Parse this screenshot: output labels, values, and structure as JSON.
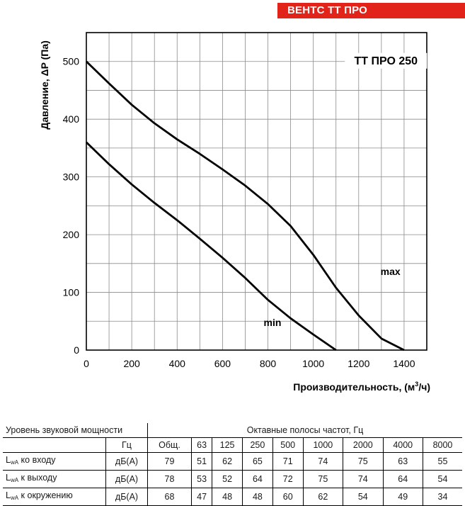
{
  "brand_title": "ВЕНТС ТТ ПРО",
  "chart_data": {
    "type": "line",
    "title": "ТТ ПРО 250",
    "xlabel_text": "Производительность, (м",
    "xlabel_sup": "3",
    "xlabel_tail": "/ч)",
    "ylabel": "Давление, ΔP (Па)",
    "xlim": [
      0,
      1500
    ],
    "ylim": [
      0,
      550
    ],
    "x_ticks": [
      0,
      200,
      400,
      600,
      800,
      1000,
      1200,
      1400
    ],
    "y_ticks": [
      0,
      100,
      200,
      300,
      400,
      500
    ],
    "grid": true,
    "series": [
      {
        "name": "max",
        "points": [
          [
            0,
            500
          ],
          [
            100,
            462
          ],
          [
            200,
            425
          ],
          [
            300,
            393
          ],
          [
            400,
            365
          ],
          [
            500,
            340
          ],
          [
            600,
            313
          ],
          [
            700,
            285
          ],
          [
            800,
            253
          ],
          [
            900,
            215
          ],
          [
            1000,
            165
          ],
          [
            1100,
            108
          ],
          [
            1200,
            60
          ],
          [
            1300,
            20
          ],
          [
            1400,
            0
          ]
        ]
      },
      {
        "name": "min",
        "points": [
          [
            0,
            360
          ],
          [
            100,
            322
          ],
          [
            200,
            287
          ],
          [
            300,
            255
          ],
          [
            400,
            225
          ],
          [
            500,
            193
          ],
          [
            600,
            160
          ],
          [
            700,
            125
          ],
          [
            800,
            87
          ],
          [
            900,
            55
          ],
          [
            1000,
            27
          ],
          [
            1100,
            0
          ]
        ]
      }
    ]
  },
  "table": {
    "title": "Уровень звуковой мощности",
    "bands_title": "Октавные полосы частот, Гц",
    "unit_header": "Гц",
    "columns": [
      "Общ.",
      "63",
      "125",
      "250",
      "500",
      "1000",
      "2000",
      "4000",
      "8000"
    ],
    "rows": [
      {
        "lw": "L",
        "sub": "wA",
        "label": " ко входу",
        "unit": "дБ(А)",
        "values": [
          "79",
          "51",
          "62",
          "65",
          "71",
          "74",
          "75",
          "63",
          "55"
        ]
      },
      {
        "lw": "L",
        "sub": "wA",
        "label": " к выходу",
        "unit": "дБ(А)",
        "values": [
          "78",
          "53",
          "52",
          "64",
          "72",
          "75",
          "74",
          "64",
          "54"
        ]
      },
      {
        "lw": "L",
        "sub": "wA",
        "label": " к окружению",
        "unit": "дБ(А)",
        "values": [
          "68",
          "47",
          "48",
          "48",
          "60",
          "62",
          "54",
          "49",
          "34"
        ]
      }
    ]
  }
}
